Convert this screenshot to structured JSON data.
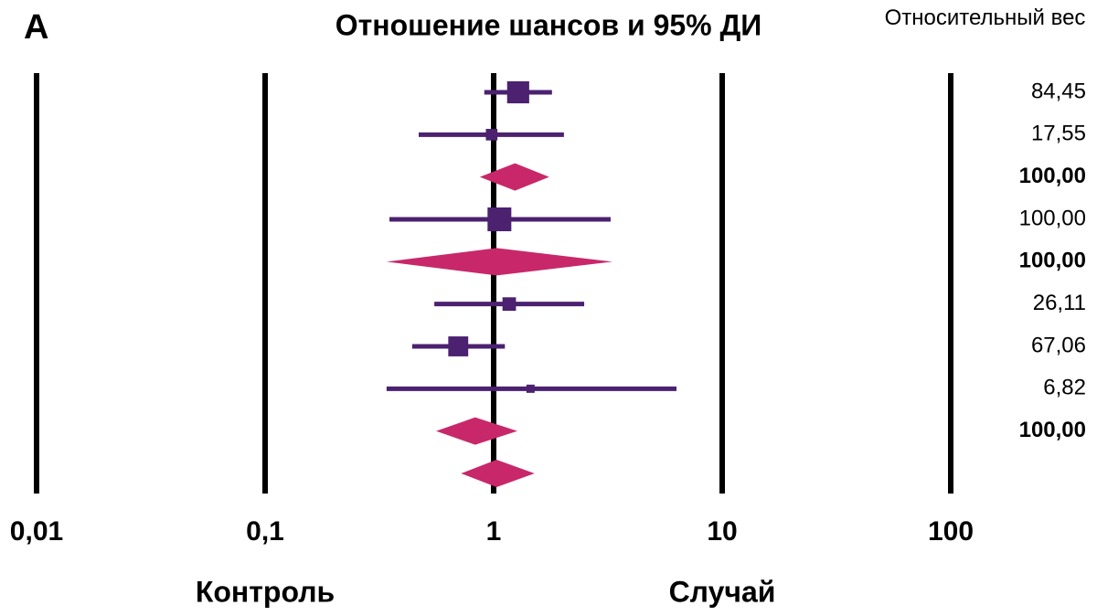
{
  "chart_data": {
    "type": "forest",
    "panel": "A",
    "title": "Отношение шансов и 95% ДИ",
    "weight_header": "Относительный вес",
    "x_label_left": "Контроль",
    "x_label_right": "Случай",
    "log_x": true,
    "grid": true,
    "xlim": [
      0.01,
      100
    ],
    "xticks": [
      {
        "value": 0.01,
        "label": "0,01"
      },
      {
        "value": 0.1,
        "label": "0,1"
      },
      1,
      10,
      100
    ],
    "shapes": [
      "square",
      "square",
      "diamond",
      "square",
      "diamond",
      "square",
      "square",
      "square",
      "diamond",
      "diamond"
    ],
    "values": [
      1.28,
      0.98,
      1.24,
      1.06,
      1.03,
      1.17,
      0.7,
      1.45,
      0.83,
      1.03
    ],
    "ci_low": [
      0.91,
      0.47,
      0.87,
      0.35,
      0.34,
      0.55,
      0.44,
      0.34,
      0.56,
      0.72
    ],
    "ci_high": [
      1.8,
      2.03,
      1.75,
      3.25,
      3.31,
      2.49,
      1.12,
      6.31,
      1.27,
      1.51
    ],
    "weights": [
      84.45,
      17.55,
      100,
      100,
      100,
      26.11,
      67.06,
      6.82,
      100,
      null
    ],
    "weight_labels": [
      "84,45",
      "17,55",
      "100,00",
      "100,00",
      "100,00",
      "26,11",
      "67,06",
      "6,82",
      "100,00",
      null
    ],
    "study_color": "#4b2170",
    "pooled_color": "#c8286a",
    "panel_color": "#c8286a"
  }
}
